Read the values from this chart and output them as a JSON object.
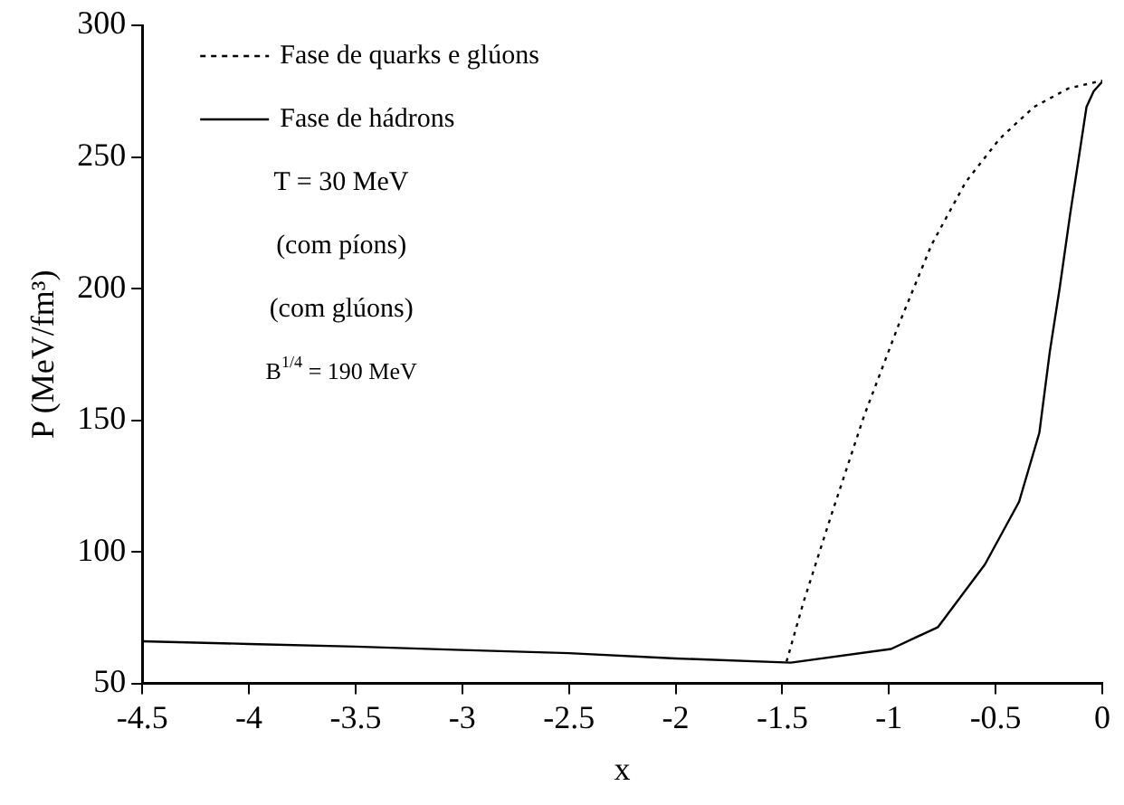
{
  "chart_data": {
    "type": "line",
    "xlabel": "x",
    "ylabel": "P (MeV/fm³)",
    "xlim": [
      -4.5,
      0
    ],
    "xticks": [
      -4.5,
      -4,
      -3.5,
      -3,
      -2.5,
      -2,
      -1.5,
      -1,
      -0.5,
      0
    ],
    "ylim": [
      50,
      300
    ],
    "yticks": [
      50,
      100,
      150,
      200,
      250,
      300
    ],
    "grid": false,
    "legend": "top left",
    "marker": "none",
    "series": [
      {
        "name": "Fase de quarks e glúons",
        "color": "#000000",
        "line_style": "dotted",
        "x": [
          -1.48,
          -1.4,
          -1.27,
          -1.115,
          -0.957,
          -0.8,
          -0.64,
          -0.48,
          -0.32,
          -0.16,
          0
        ],
        "values": [
          58.3,
          81,
          114,
          152,
          185.7,
          216.7,
          240.5,
          257,
          269,
          276,
          279
        ]
      },
      {
        "name": "Fase de hádrons",
        "color": "#000000",
        "line_style": "solid",
        "x": [
          -4.5,
          -4,
          -3.5,
          -3,
          -2.5,
          -2,
          -1.46,
          -0.99,
          -0.77,
          -0.55,
          -0.39,
          -0.295,
          -0.246,
          -0.2,
          -0.15,
          -0.105,
          -0.074,
          -0.04,
          0
        ],
        "values": [
          66,
          65,
          64,
          62.7,
          61.5,
          59.5,
          57.9,
          63.1,
          71.4,
          95.2,
          119,
          145.2,
          176,
          200,
          228.6,
          252.4,
          269,
          275,
          278.6
        ]
      }
    ],
    "annotations": [
      "T = 30 MeV",
      "(com píons)",
      "(com glúons)",
      "B$^{1/4}$ = 190 MeV"
    ]
  }
}
